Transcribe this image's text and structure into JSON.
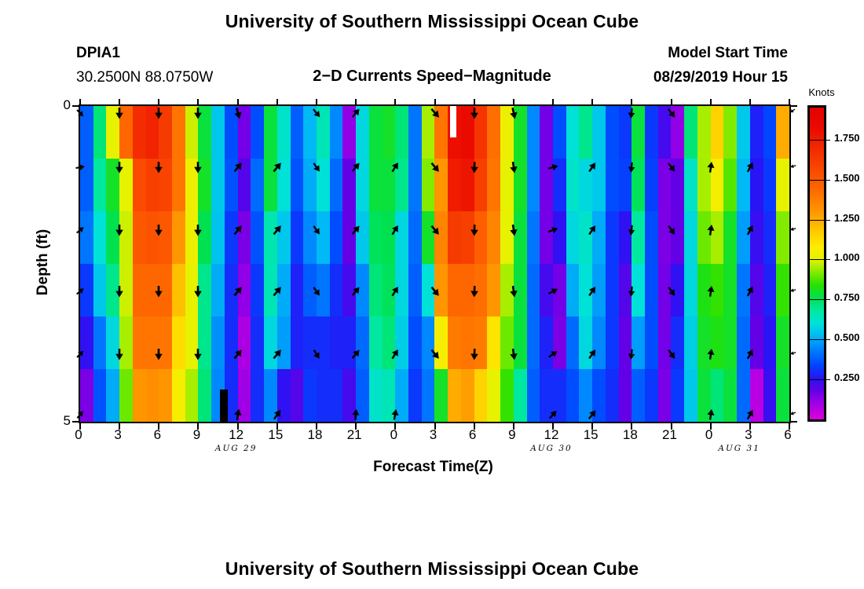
{
  "titles": {
    "top": "University of Southern Mississippi Ocean Cube",
    "bottom": "University of Southern Mississippi Ocean Cube"
  },
  "header": {
    "station_id": "DPIA1",
    "coordinates": "30.2500N 88.0750W",
    "plot_title": "2−D Currents Speed−Magnitude",
    "model_start_label": "Model Start Time",
    "model_start_value": "08/29/2019 Hour 15"
  },
  "axes": {
    "y_label": "Depth (ft)",
    "y_ticks": [
      {
        "label": "0",
        "frac": 0
      },
      {
        "label": "5",
        "frac": 1
      }
    ],
    "x_label": "Forecast Time(Z)",
    "x_tick_hours": [
      0,
      3,
      6,
      9,
      12,
      15,
      18,
      21,
      24,
      27,
      30,
      33,
      36,
      39,
      42,
      45,
      48,
      51,
      54
    ],
    "x_tick_labels": [
      "0",
      "3",
      "6",
      "9",
      "12",
      "15",
      "18",
      "21",
      "0",
      "3",
      "6",
      "9",
      "12",
      "15",
      "18",
      "21",
      "0",
      "3",
      "6"
    ],
    "date_labels": [
      {
        "text": "AUG 29",
        "hour": 12
      },
      {
        "text": "AUG 30",
        "hour": 36
      },
      {
        "text": "AUG 31",
        "hour": 50.3
      }
    ]
  },
  "colorbar": {
    "title": "Knots",
    "vmin": 0,
    "vmax": 1.95,
    "tick_values": [
      1.75,
      1.5,
      1.25,
      1.0,
      0.75,
      0.5,
      0.25
    ],
    "tick_labels": [
      "1.750",
      "1.500",
      "1.250",
      "1.000",
      "0.750",
      "0.500",
      "0.250"
    ],
    "palette_stops": [
      [
        0.0,
        "#DC00DC"
      ],
      [
        0.1,
        "#A000E6"
      ],
      [
        0.18,
        "#6400E6"
      ],
      [
        0.26,
        "#2814F5"
      ],
      [
        0.34,
        "#0046FF"
      ],
      [
        0.44,
        "#0082FF"
      ],
      [
        0.52,
        "#00B9F5"
      ],
      [
        0.6,
        "#00E1D7"
      ],
      [
        0.68,
        "#00E8A0"
      ],
      [
        0.76,
        "#00E150"
      ],
      [
        0.84,
        "#28E100"
      ],
      [
        0.92,
        "#82EB00"
      ],
      [
        1.0,
        "#E6F200"
      ],
      [
        1.08,
        "#FFEB00"
      ],
      [
        1.18,
        "#FFC800"
      ],
      [
        1.3,
        "#FF9600"
      ],
      [
        1.42,
        "#FF6E00"
      ],
      [
        1.55,
        "#FA4B00"
      ],
      [
        1.7,
        "#F22800"
      ],
      [
        1.82,
        "#EB0A00"
      ],
      [
        1.95,
        "#E40000"
      ]
    ]
  },
  "chart_data": {
    "type": "heatmap",
    "title": "2−D Currents Speed−Magnitude",
    "station": "DPIA1",
    "units": "Knots",
    "x_range_hours": [
      0,
      54
    ],
    "depth_range_ft": [
      0,
      5
    ],
    "n_depth_levels": 6,
    "grid_knots": [
      [
        0.38,
        0.72,
        1.0,
        1.45,
        1.68,
        1.72,
        1.62,
        1.4,
        0.98,
        0.78,
        0.55,
        0.35,
        0.16,
        0.35,
        0.78,
        0.62,
        0.38,
        0.52,
        0.65,
        0.45,
        0.12,
        0.58,
        0.78,
        0.8,
        0.72,
        0.42,
        0.95,
        1.4,
        1.8,
        1.82,
        1.65,
        1.42,
        1.02,
        0.8,
        0.45,
        0.16,
        0.35,
        0.6,
        0.7,
        0.55,
        0.35,
        0.32,
        0.78,
        0.32,
        0.22,
        0.12,
        0.72,
        0.95,
        1.15,
        0.92,
        0.55,
        0.28,
        0.34,
        1.25
      ],
      [
        0.38,
        0.68,
        0.8,
        1.0,
        1.55,
        1.6,
        1.58,
        1.4,
        1.02,
        0.8,
        0.55,
        0.36,
        0.2,
        0.4,
        0.78,
        0.6,
        0.36,
        0.5,
        0.6,
        0.4,
        0.18,
        0.58,
        0.78,
        0.78,
        0.7,
        0.42,
        0.92,
        1.3,
        1.75,
        1.78,
        1.6,
        1.4,
        1.0,
        0.8,
        0.45,
        0.16,
        0.3,
        0.62,
        0.58,
        0.55,
        0.35,
        0.33,
        0.75,
        0.33,
        0.15,
        0.18,
        0.62,
        0.95,
        1.05,
        0.88,
        0.52,
        0.26,
        0.32,
        1.0
      ],
      [
        0.42,
        0.6,
        0.76,
        0.98,
        1.5,
        1.52,
        1.5,
        1.3,
        1.02,
        0.76,
        0.54,
        0.32,
        0.15,
        0.36,
        0.66,
        0.55,
        0.32,
        0.45,
        0.52,
        0.35,
        0.18,
        0.55,
        0.75,
        0.76,
        0.58,
        0.4,
        0.8,
        1.35,
        1.62,
        1.6,
        1.48,
        1.35,
        1.0,
        0.78,
        0.42,
        0.16,
        0.25,
        0.58,
        0.62,
        0.5,
        0.32,
        0.25,
        0.68,
        0.35,
        0.15,
        0.18,
        0.58,
        0.9,
        0.95,
        0.8,
        0.48,
        0.24,
        0.3,
        0.92
      ],
      [
        0.32,
        0.55,
        0.7,
        0.98,
        1.45,
        1.45,
        1.45,
        1.2,
        1.0,
        0.7,
        0.5,
        0.3,
        0.12,
        0.32,
        0.65,
        0.5,
        0.28,
        0.38,
        0.42,
        0.3,
        0.22,
        0.45,
        0.72,
        0.75,
        0.58,
        0.38,
        0.6,
        1.3,
        1.45,
        1.45,
        1.42,
        1.3,
        0.95,
        0.78,
        0.4,
        0.22,
        0.16,
        0.5,
        0.6,
        0.48,
        0.32,
        0.2,
        0.6,
        0.35,
        0.16,
        0.25,
        0.58,
        0.82,
        0.85,
        0.8,
        0.42,
        0.2,
        0.28,
        0.85
      ],
      [
        0.25,
        0.42,
        0.58,
        0.95,
        1.4,
        1.4,
        1.4,
        1.12,
        1.0,
        0.7,
        0.46,
        0.3,
        0.08,
        0.3,
        0.58,
        0.48,
        0.28,
        0.3,
        0.3,
        0.28,
        0.28,
        0.4,
        0.68,
        0.72,
        0.56,
        0.35,
        0.45,
        1.05,
        1.38,
        1.4,
        1.38,
        1.1,
        0.9,
        0.78,
        0.4,
        0.28,
        0.15,
        0.4,
        0.58,
        0.45,
        0.32,
        0.18,
        0.48,
        0.35,
        0.16,
        0.3,
        0.56,
        0.8,
        0.82,
        0.8,
        0.4,
        0.18,
        0.26,
        0.8
      ],
      [
        0.15,
        0.36,
        0.5,
        0.9,
        1.3,
        1.32,
        1.3,
        1.05,
        0.95,
        0.72,
        0.45,
        0.3,
        0.1,
        0.3,
        0.45,
        0.25,
        0.2,
        0.32,
        0.3,
        0.3,
        0.22,
        0.38,
        0.62,
        0.65,
        0.5,
        0.32,
        0.42,
        0.8,
        1.25,
        1.28,
        1.15,
        1.0,
        0.85,
        0.68,
        0.38,
        0.3,
        0.3,
        0.35,
        0.45,
        0.35,
        0.3,
        0.18,
        0.38,
        0.32,
        0.15,
        0.32,
        0.55,
        0.78,
        0.72,
        0.78,
        0.4,
        0.06,
        0.24,
        0.78
      ]
    ],
    "patches": [
      {
        "name": "missing-data-white",
        "color": "#FFFFFF",
        "hour0": 28.17,
        "hour1": 28.62,
        "frac_top": 0.0,
        "frac_bottom": 0.1
      },
      {
        "name": "missing-data-black",
        "color": "#000000",
        "hour0": 10.64,
        "hour1": 11.24,
        "frac_top": 0.898,
        "frac_bottom": 1.0
      }
    ],
    "arrows": {
      "hours": [
        0,
        3,
        6,
        9,
        12,
        15,
        18,
        21,
        24,
        27,
        30,
        33,
        36,
        39,
        42,
        45,
        48,
        51,
        54
      ],
      "row_fracs": [
        0.022,
        0.195,
        0.392,
        0.588,
        0.785,
        0.978
      ],
      "dirs_deg_cw_from_up": [
        [
          135,
          80,
          50,
          50,
          45,
          40
        ],
        [
          180,
          180,
          180,
          180,
          180,
          null
        ],
        [
          180,
          180,
          180,
          180,
          180,
          null
        ],
        [
          180,
          180,
          180,
          180,
          180,
          null
        ],
        [
          165,
          40,
          40,
          40,
          40,
          8
        ],
        [
          null,
          40,
          40,
          40,
          40,
          35
        ],
        [
          140,
          145,
          145,
          145,
          148,
          null
        ],
        [
          40,
          40,
          40,
          40,
          40,
          5
        ],
        [
          null,
          32,
          32,
          32,
          32,
          10
        ],
        [
          138,
          140,
          140,
          140,
          140,
          null
        ],
        [
          180,
          182,
          182,
          182,
          182,
          null
        ],
        [
          168,
          172,
          172,
          172,
          172,
          null
        ],
        [
          null,
          75,
          70,
          62,
          55,
          42
        ],
        [
          null,
          35,
          35,
          35,
          35,
          38
        ],
        [
          185,
          186,
          186,
          186,
          186,
          null
        ],
        [
          142,
          142,
          144,
          144,
          144,
          null
        ],
        [
          null,
          8,
          8,
          8,
          8,
          8
        ],
        [
          null,
          28,
          28,
          28,
          28,
          30
        ],
        [
          235,
          255,
          255,
          255,
          255,
          250
        ]
      ],
      "sizes": [
        0.8,
        1,
        1,
        1,
        1,
        1,
        0.9,
        0.95,
        0.95,
        1,
        1,
        1,
        0.9,
        0.95,
        0.9,
        0.95,
        0.95,
        0.95,
        0.5
      ]
    }
  }
}
